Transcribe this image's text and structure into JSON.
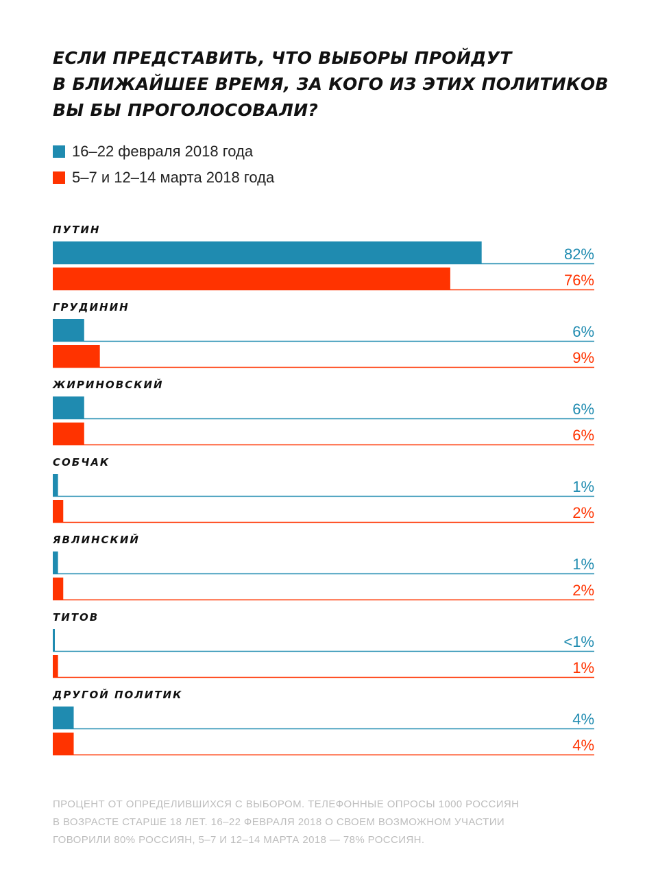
{
  "title_lines": [
    "ЕСЛИ ПРЕДСТАВИТЬ, ЧТО ВЫБОРЫ ПРОЙДУТ",
    "В БЛИЖАЙШЕЕ ВРЕМЯ, ЗА КОГО ИЗ ЭТИХ ПОЛИТИКОВ",
    "ВЫ БЫ ПРОГОЛОСОВАЛИ?"
  ],
  "legend": [
    {
      "label": "16–22 февраля 2018 года",
      "color": "#1f8bb0"
    },
    {
      "label": "5–7 и 12–14 марта 2018 года",
      "color": "#ff3300"
    }
  ],
  "footnote_lines": [
    "ПРОЦЕНТ ОТ ОПРЕДЕЛИВШИХСЯ С ВЫБОРОМ. ТЕЛЕФОННЫЕ ОПРОСЫ 1000 РОССИЯН",
    "В ВОЗРАСТЕ СТАРШЕ 18 ЛЕТ. 16–22 ФЕВРАЛЯ 2018 О СВОЕМ ВОЗМОЖНОМ УЧАСТИИ",
    "ГОВОРИЛИ 80% РОССИЯН, 5–7 И 12–14 МАРТА 2018 — 78% РОССИЯН."
  ],
  "chart_data": {
    "type": "bar",
    "orientation": "horizontal",
    "categories": [
      "ПУТИН",
      "ГРУДИНИН",
      "ЖИРИНОВСКИЙ",
      "СОБЧАК",
      "ЯВЛИНСКИЙ",
      "ТИТОВ",
      "ДРУГОЙ ПОЛИТИК"
    ],
    "xlim": [
      0,
      100
    ],
    "series": [
      {
        "name": "16–22 февраля 2018 года",
        "color": "#1f8bb0",
        "values": [
          82,
          6,
          6,
          1,
          1,
          0.3,
          4
        ],
        "labels": [
          "82%",
          "6%",
          "6%",
          "1%",
          "1%",
          "<1%",
          "4%"
        ]
      },
      {
        "name": "5–7 и 12–14 марта 2018 года",
        "color": "#ff3300",
        "values": [
          76,
          9,
          6,
          2,
          2,
          1,
          4
        ],
        "labels": [
          "76%",
          "9%",
          "6%",
          "2%",
          "2%",
          "1%",
          "4%"
        ]
      }
    ]
  }
}
